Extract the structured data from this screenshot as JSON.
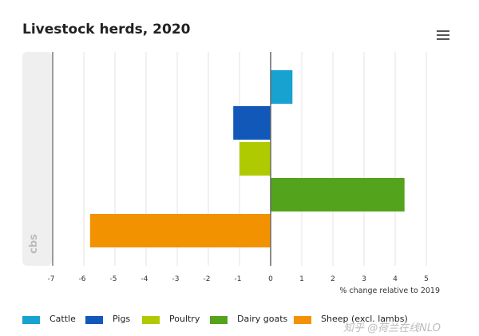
{
  "chart_data": {
    "type": "bar",
    "orientation": "horizontal",
    "title": "Livestock herds, 2020",
    "xlabel": "% change relative to 2019",
    "xlim": [
      -7,
      5
    ],
    "xticks": [
      "-7",
      "-6",
      "-5",
      "-4",
      "-3",
      "-2",
      "-1",
      "0",
      "1",
      "2",
      "3",
      "4",
      "5"
    ],
    "grid": true,
    "legend_position": "bottom",
    "series": [
      {
        "name": "Cattle",
        "value": 0.7,
        "color": "#17a2d0"
      },
      {
        "name": "Pigs",
        "value": -1.2,
        "color": "#1258b8"
      },
      {
        "name": "Poultry",
        "value": -1.0,
        "color": "#afca00"
      },
      {
        "name": "Dairy goats",
        "value": 4.3,
        "color": "#53a31d"
      },
      {
        "name": "Sheep (excl. lambs)",
        "value": -5.8,
        "color": "#f39200"
      }
    ]
  },
  "menu_icon": "hamburger-menu-icon",
  "logo_text": "cbs",
  "watermark": "知乎 @荷兰在线NLO"
}
